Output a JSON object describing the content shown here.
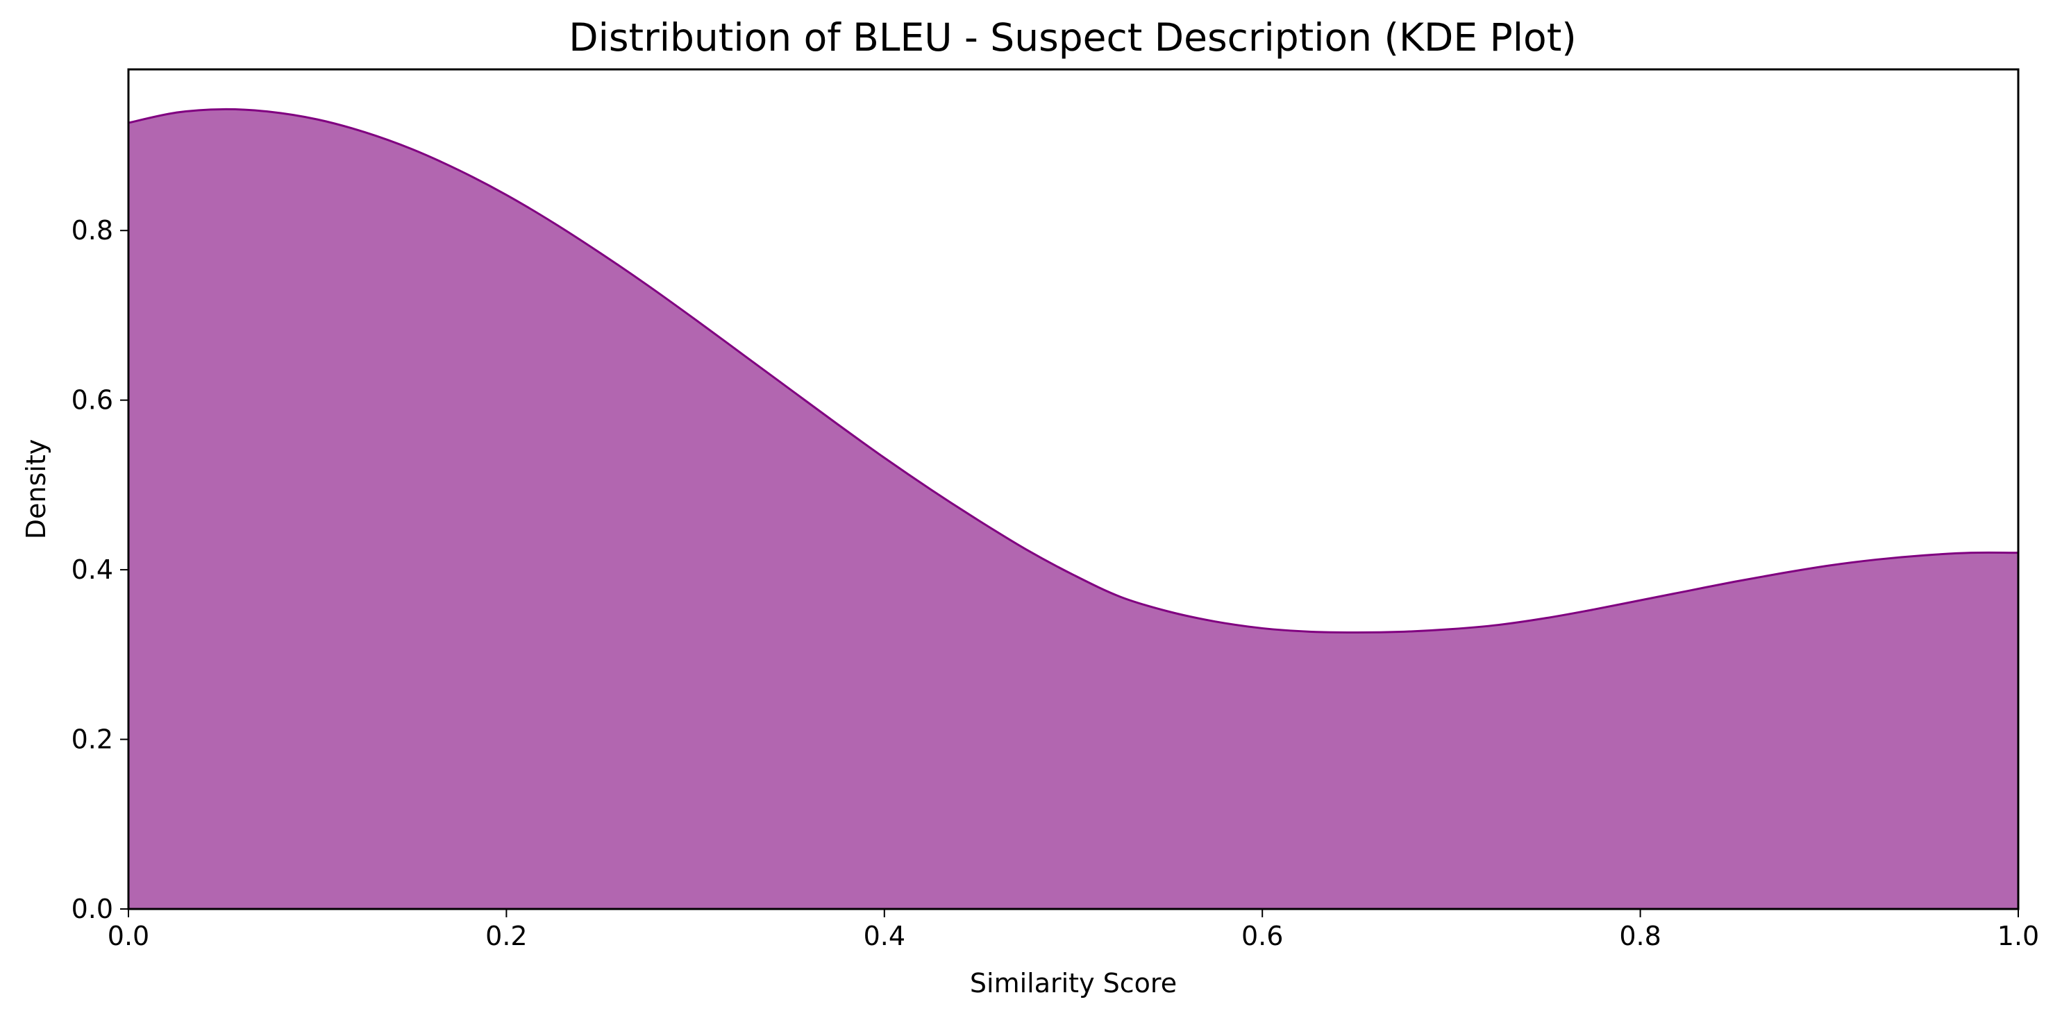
{
  "chart_data": {
    "type": "area",
    "title": "Distribution of BLEU - Suspect Description (KDE Plot)",
    "xlabel": "Similarity Score",
    "ylabel": "Density",
    "xlim": [
      0.0,
      1.0
    ],
    "ylim": [
      0.0,
      0.99
    ],
    "x_ticks": [
      "0.0",
      "0.2",
      "0.4",
      "0.6",
      "0.8",
      "1.0"
    ],
    "y_ticks": [
      "0.0",
      "0.2",
      "0.4",
      "0.6",
      "0.8"
    ],
    "grid": false,
    "legend": "none",
    "series": [
      {
        "x": [
          0.0,
          0.025,
          0.05,
          0.075,
          0.1,
          0.125,
          0.15,
          0.175,
          0.2,
          0.225,
          0.25,
          0.275,
          0.3,
          0.325,
          0.35,
          0.375,
          0.4,
          0.425,
          0.45,
          0.475,
          0.5,
          0.525,
          0.55,
          0.575,
          0.6,
          0.625,
          0.65,
          0.675,
          0.7,
          0.725,
          0.75,
          0.775,
          0.8,
          0.825,
          0.85,
          0.875,
          0.9,
          0.925,
          0.95,
          0.975,
          1.0
        ],
        "y": [
          0.927,
          0.939,
          0.943,
          0.94,
          0.931,
          0.916,
          0.896,
          0.871,
          0.842,
          0.809,
          0.773,
          0.735,
          0.695,
          0.654,
          0.613,
          0.572,
          0.532,
          0.494,
          0.458,
          0.424,
          0.394,
          0.368,
          0.351,
          0.339,
          0.331,
          0.327,
          0.326,
          0.327,
          0.33,
          0.335,
          0.343,
          0.353,
          0.364,
          0.375,
          0.386,
          0.396,
          0.405,
          0.412,
          0.417,
          0.42,
          0.42
        ]
      }
    ],
    "colors": {
      "fill": "#b266b0",
      "line": "#800080"
    }
  }
}
